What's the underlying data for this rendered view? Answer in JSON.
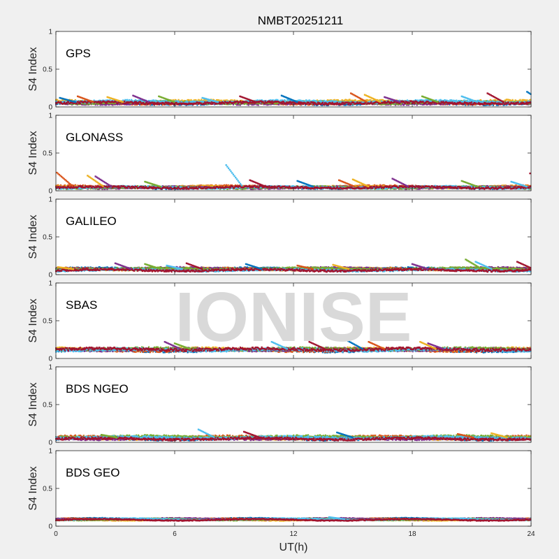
{
  "title": "NMBT20251211",
  "xlabel": "UT(h)",
  "watermark": "IONISE",
  "colors": [
    "#0072bd",
    "#d95319",
    "#edb120",
    "#7e2f8e",
    "#77ac30",
    "#4dbeee",
    "#a2142f"
  ],
  "chart_data": [
    {
      "type": "scatter",
      "system": "GPS",
      "ylabel": "S4 Index",
      "xlim": [
        0,
        24
      ],
      "ylim": [
        0,
        1
      ],
      "xticks": [
        0,
        6,
        12,
        18,
        24
      ],
      "yticks": [
        0,
        0.5,
        1
      ],
      "baseline": 0.06,
      "spread": 0.03,
      "spikes": [
        [
          0.2,
          0.12
        ],
        [
          1.1,
          0.14
        ],
        [
          2.6,
          0.13
        ],
        [
          3.9,
          0.15
        ],
        [
          5.2,
          0.14
        ],
        [
          7.4,
          0.12
        ],
        [
          9.3,
          0.14
        ],
        [
          11.4,
          0.15
        ],
        [
          14.9,
          0.18
        ],
        [
          15.6,
          0.16
        ],
        [
          16.6,
          0.13
        ],
        [
          18.5,
          0.14
        ],
        [
          20.5,
          0.14
        ],
        [
          21.8,
          0.18
        ],
        [
          23.8,
          0.2
        ]
      ]
    },
    {
      "type": "scatter",
      "system": "GLONASS",
      "ylabel": "S4 Index",
      "xlim": [
        0,
        24
      ],
      "ylim": [
        0,
        1
      ],
      "xticks": [
        0,
        6,
        12,
        18,
        24
      ],
      "yticks": [
        0,
        0.5,
        1
      ],
      "baseline": 0.05,
      "spread": 0.025,
      "spikes": [
        [
          0.05,
          0.24
        ],
        [
          1.6,
          0.2
        ],
        [
          2.0,
          0.19
        ],
        [
          4.5,
          0.12
        ],
        [
          8.6,
          0.34
        ],
        [
          9.8,
          0.14
        ],
        [
          12.2,
          0.13
        ],
        [
          14.3,
          0.14
        ],
        [
          15.0,
          0.15
        ],
        [
          17.0,
          0.16
        ],
        [
          20.5,
          0.13
        ],
        [
          23.0,
          0.12
        ],
        [
          23.95,
          0.23
        ]
      ]
    },
    {
      "type": "scatter",
      "system": "GALILEO",
      "ylabel": "S4 Index",
      "xlim": [
        0,
        24
      ],
      "ylim": [
        0,
        1
      ],
      "xticks": [
        0,
        6,
        12,
        18,
        24
      ],
      "yticks": [
        0,
        0.5,
        1
      ],
      "baseline": 0.07,
      "spread": 0.025,
      "spikes": [
        [
          0.1,
          0.1
        ],
        [
          3.0,
          0.15
        ],
        [
          4.5,
          0.14
        ],
        [
          5.6,
          0.12
        ],
        [
          6.6,
          0.15
        ],
        [
          9.6,
          0.14
        ],
        [
          12.2,
          0.12
        ],
        [
          14.0,
          0.13
        ],
        [
          18.0,
          0.14
        ],
        [
          20.7,
          0.2
        ],
        [
          21.2,
          0.17
        ],
        [
          23.3,
          0.17
        ]
      ]
    },
    {
      "type": "scatter",
      "system": "SBAS",
      "ylabel": "S4 Index",
      "xlim": [
        0,
        24
      ],
      "ylim": [
        0,
        1
      ],
      "xticks": [
        0,
        6,
        12,
        18,
        24
      ],
      "yticks": [
        0,
        0.5,
        1
      ],
      "baseline": 0.12,
      "spread": 0.035,
      "spikes": [
        [
          5.5,
          0.22
        ],
        [
          6.0,
          0.2
        ],
        [
          10.9,
          0.22
        ],
        [
          12.8,
          0.22
        ],
        [
          14.7,
          0.24
        ],
        [
          15.8,
          0.22
        ],
        [
          18.4,
          0.22
        ],
        [
          18.8,
          0.2
        ]
      ]
    },
    {
      "type": "scatter",
      "system": "BDS NGEO",
      "ylabel": "S4 Index",
      "xlim": [
        0,
        24
      ],
      "ylim": [
        0,
        1
      ],
      "xticks": [
        0,
        6,
        12,
        18,
        24
      ],
      "yticks": [
        0,
        0.5,
        1
      ],
      "baseline": 0.06,
      "spread": 0.03,
      "spikes": [
        [
          2.3,
          0.1
        ],
        [
          7.2,
          0.17
        ],
        [
          9.5,
          0.14
        ],
        [
          14.2,
          0.13
        ],
        [
          20.3,
          0.11
        ],
        [
          22.0,
          0.12
        ]
      ]
    },
    {
      "type": "scatter",
      "system": "BDS GEO",
      "ylabel": "S4 Index",
      "xlim": [
        0,
        24
      ],
      "ylim": [
        0,
        1
      ],
      "xticks": [
        0,
        6,
        12,
        18,
        24
      ],
      "yticks": [
        0,
        0.5,
        1
      ],
      "baseline": 0.09,
      "spread": 0.012,
      "spikes": [
        [
          13.8,
          0.12
        ]
      ]
    }
  ]
}
